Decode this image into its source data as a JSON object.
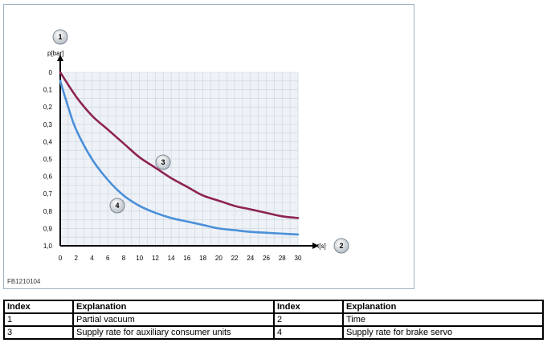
{
  "figure_id": "FB1210104",
  "chart_data": {
    "type": "line",
    "xlabel": "t[s]",
    "ylabel": "p[bar]",
    "xlim": [
      0,
      30
    ],
    "ylim": [
      0,
      1.0
    ],
    "y_inverted": true,
    "grid": true,
    "x_ticks": [
      "0",
      "2",
      "4",
      "6",
      "8",
      "10",
      "12",
      "14",
      "16",
      "18",
      "20",
      "22",
      "24",
      "26",
      "28",
      "30"
    ],
    "y_ticks": [
      "0",
      "0,1",
      "0,2",
      "0,3",
      "0,4",
      "0,5",
      "0,6",
      "0,7",
      "0,8",
      "0,9",
      "1,0"
    ],
    "callouts": {
      "ylabel": "1",
      "xlabel": "2"
    },
    "series": [
      {
        "marker": "3",
        "color": "#8e2353",
        "x": [
          0,
          2,
          4,
          6,
          8,
          10,
          12,
          14,
          16,
          18,
          20,
          22,
          24,
          26,
          28,
          30
        ],
        "y": [
          0,
          0.14,
          0.25,
          0.33,
          0.41,
          0.49,
          0.55,
          0.61,
          0.66,
          0.71,
          0.74,
          0.77,
          0.79,
          0.81,
          0.83,
          0.84
        ]
      },
      {
        "marker": "4",
        "color": "#4a90d9",
        "x": [
          0,
          1,
          2,
          4,
          6,
          8,
          10,
          12,
          14,
          16,
          18,
          20,
          22,
          24,
          26,
          28,
          30
        ],
        "y": [
          0.05,
          0.2,
          0.33,
          0.5,
          0.62,
          0.71,
          0.77,
          0.81,
          0.84,
          0.86,
          0.88,
          0.9,
          0.91,
          0.92,
          0.925,
          0.93,
          0.935
        ]
      }
    ]
  },
  "legend_table": {
    "headers": [
      "Index",
      "Explanation",
      "Index",
      "Explanation"
    ],
    "rows": [
      [
        "1",
        "Partial vacuum",
        "2",
        "Time"
      ],
      [
        "3",
        "Supply rate for auxiliary consumer units",
        "4",
        "Supply rate for brake servo"
      ]
    ]
  }
}
